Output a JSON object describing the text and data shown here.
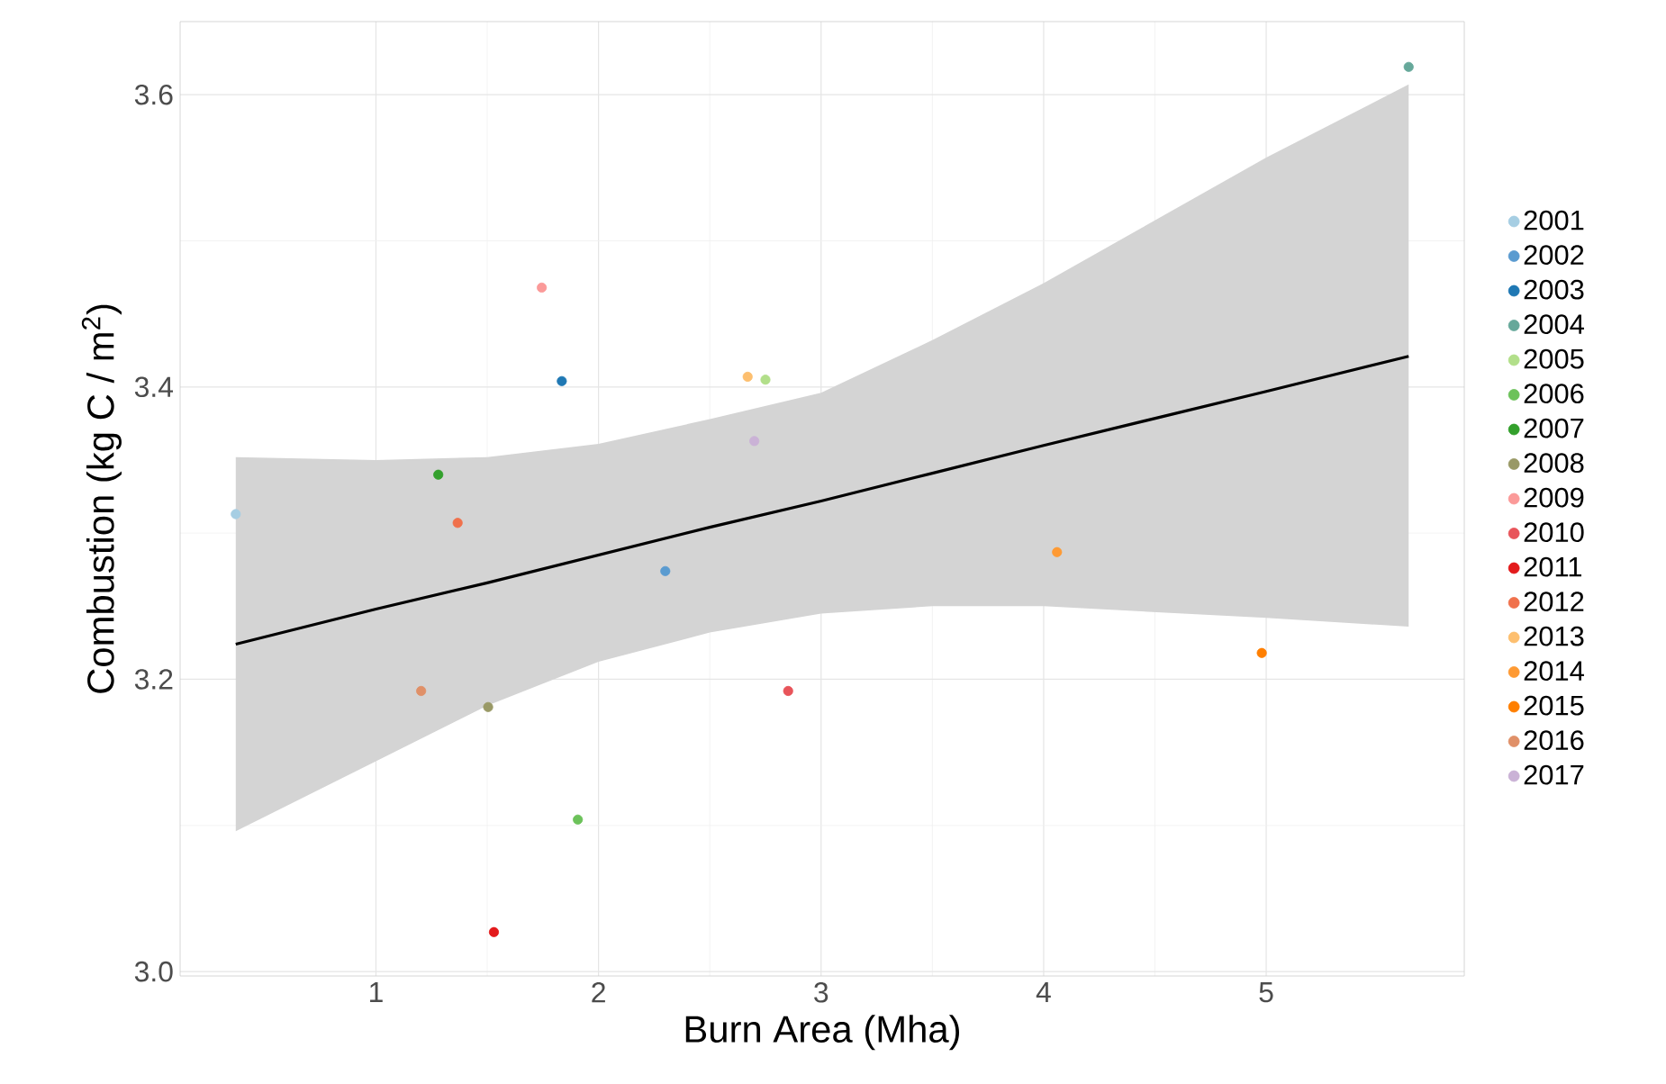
{
  "chart_data": {
    "type": "scatter",
    "xlabel": "Burn Area (Mha)",
    "ylabel": "Combustion (kg C / m$^{2}$)",
    "xlim": [
      0.12,
      5.89
    ],
    "ylim": [
      2.997,
      3.65
    ],
    "xticks": [
      1,
      2,
      3,
      4,
      5
    ],
    "yticks": [
      {
        "value": 3,
        "label": "3.0"
      },
      3.2,
      3.4,
      3.6
    ],
    "grid": true,
    "legend": "right",
    "series": [
      {
        "name": "2001",
        "marker": "circle",
        "color": "#a6cee3",
        "x": [
          0.37
        ],
        "values": [
          3.313
        ]
      },
      {
        "name": "2002",
        "marker": "circle",
        "color": "#5a9bd0",
        "x": [
          2.3
        ],
        "values": [
          3.274
        ]
      },
      {
        "name": "2003",
        "marker": "circle",
        "color": "#1f78b4",
        "x": [
          1.835
        ],
        "values": [
          3.404
        ]
      },
      {
        "name": "2004",
        "marker": "circle",
        "color": "#66a89a",
        "x": [
          5.64
        ],
        "values": [
          3.619
        ]
      },
      {
        "name": "2005",
        "marker": "circle",
        "color": "#b2df8a",
        "x": [
          2.75
        ],
        "values": [
          3.405
        ]
      },
      {
        "name": "2006",
        "marker": "circle",
        "color": "#6cc25a",
        "x": [
          1.907
        ],
        "values": [
          3.104
        ]
      },
      {
        "name": "2007",
        "marker": "circle",
        "color": "#33a02c",
        "x": [
          1.28
        ],
        "values": [
          3.34
        ]
      },
      {
        "name": "2008",
        "marker": "circle",
        "color": "#999966",
        "x": [
          1.504
        ],
        "values": [
          3.181
        ]
      },
      {
        "name": "2009",
        "marker": "circle",
        "color": "#fb9a99",
        "x": [
          1.745
        ],
        "values": [
          3.468
        ]
      },
      {
        "name": "2010",
        "marker": "circle",
        "color": "#e8545a",
        "x": [
          2.852
        ],
        "values": [
          3.192
        ]
      },
      {
        "name": "2011",
        "marker": "circle",
        "color": "#e31a1c",
        "x": [
          1.53
        ],
        "values": [
          3.027
        ]
      },
      {
        "name": "2012",
        "marker": "circle",
        "color": "#f0714c",
        "x": [
          1.367
        ],
        "values": [
          3.307
        ]
      },
      {
        "name": "2013",
        "marker": "circle",
        "color": "#fdbf6f",
        "x": [
          2.67
        ],
        "values": [
          3.407
        ]
      },
      {
        "name": "2014",
        "marker": "circle",
        "color": "#fe9a34",
        "x": [
          4.06
        ],
        "values": [
          3.287
        ]
      },
      {
        "name": "2015",
        "marker": "circle",
        "color": "#ff7f00",
        "x": [
          4.98
        ],
        "values": [
          3.218
        ]
      },
      {
        "name": "2016",
        "marker": "circle",
        "color": "#e09068",
        "x": [
          1.203
        ],
        "values": [
          3.192
        ]
      },
      {
        "name": "2017",
        "marker": "circle",
        "color": "#cab2d6",
        "x": [
          2.7
        ],
        "values": [
          3.363
        ]
      },
      {
        "type": "line",
        "marker": "none",
        "color": "#000000",
        "x": [
          0.37,
          1,
          1.5,
          2,
          2.5,
          3,
          3.5,
          4,
          5,
          5.64
        ],
        "values": [
          3.224,
          3.248,
          3.266,
          3.285,
          3.304,
          3.322,
          3.341,
          3.36,
          3.397,
          3.421
        ],
        "lower": [
          3.096,
          3.144,
          3.182,
          3.212,
          3.232,
          3.245,
          3.25,
          3.25,
          3.242,
          3.236
        ],
        "upper": [
          3.352,
          3.35,
          3.352,
          3.361,
          3.378,
          3.396,
          3.432,
          3.471,
          3.557,
          3.607
        ]
      }
    ]
  }
}
